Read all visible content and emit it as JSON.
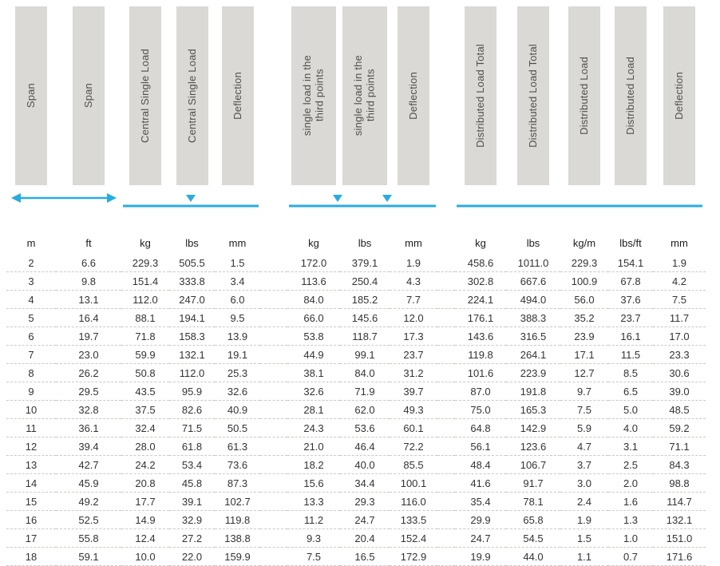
{
  "colors": {
    "accent": "#29abe2",
    "header_bg": "#dad9d5",
    "text": "#333333"
  },
  "diagram": {
    "span_arrow": "double-headed-arrow",
    "central_load": "single-down-triangle-over-beam-line",
    "third_point_loads": "two-down-triangles-over-beam-line",
    "distributed_load": "beam-line"
  },
  "table": {
    "headers": [
      "Span",
      "Span",
      "Central Single Load",
      "Central Single Load",
      "Deflection",
      "single load in the\nthird points",
      "single load in the\nthird points",
      "Deflection",
      "Distributed Load Total",
      "Distributed Load Total",
      "Distributed Load",
      "Distributed Load",
      "Deflection"
    ],
    "units": [
      "m",
      "ft",
      "kg",
      "lbs",
      "mm",
      "kg",
      "lbs",
      "mm",
      "kg",
      "lbs",
      "kg/m",
      "lbs/ft",
      "mm"
    ],
    "rows": [
      [
        "2",
        "6.6",
        "229.3",
        "505.5",
        "1.5",
        "172.0",
        "379.1",
        "1.9",
        "458.6",
        "1011.0",
        "229.3",
        "154.1",
        "1.9"
      ],
      [
        "3",
        "9.8",
        "151.4",
        "333.8",
        "3.4",
        "113.6",
        "250.4",
        "4.3",
        "302.8",
        "667.6",
        "100.9",
        "67.8",
        "4.2"
      ],
      [
        "4",
        "13.1",
        "112.0",
        "247.0",
        "6.0",
        "84.0",
        "185.2",
        "7.7",
        "224.1",
        "494.0",
        "56.0",
        "37.6",
        "7.5"
      ],
      [
        "5",
        "16.4",
        "88.1",
        "194.1",
        "9.5",
        "66.0",
        "145.6",
        "12.0",
        "176.1",
        "388.3",
        "35.2",
        "23.7",
        "11.7"
      ],
      [
        "6",
        "19.7",
        "71.8",
        "158.3",
        "13.9",
        "53.8",
        "118.7",
        "17.3",
        "143.6",
        "316.5",
        "23.9",
        "16.1",
        "17.0"
      ],
      [
        "7",
        "23.0",
        "59.9",
        "132.1",
        "19.1",
        "44.9",
        "99.1",
        "23.7",
        "119.8",
        "264.1",
        "17.1",
        "11.5",
        "23.3"
      ],
      [
        "8",
        "26.2",
        "50.8",
        "112.0",
        "25.3",
        "38.1",
        "84.0",
        "31.2",
        "101.6",
        "223.9",
        "12.7",
        "8.5",
        "30.6"
      ],
      [
        "9",
        "29.5",
        "43.5",
        "95.9",
        "32.6",
        "32.6",
        "71.9",
        "39.7",
        "87.0",
        "191.8",
        "9.7",
        "6.5",
        "39.0"
      ],
      [
        "10",
        "32.8",
        "37.5",
        "82.6",
        "40.9",
        "28.1",
        "62.0",
        "49.3",
        "75.0",
        "165.3",
        "7.5",
        "5.0",
        "48.5"
      ],
      [
        "11",
        "36.1",
        "32.4",
        "71.5",
        "50.5",
        "24.3",
        "53.6",
        "60.1",
        "64.8",
        "142.9",
        "5.9",
        "4.0",
        "59.2"
      ],
      [
        "12",
        "39.4",
        "28.0",
        "61.8",
        "61.3",
        "21.0",
        "46.4",
        "72.2",
        "56.1",
        "123.6",
        "4.7",
        "3.1",
        "71.1"
      ],
      [
        "13",
        "42.7",
        "24.2",
        "53.4",
        "73.6",
        "18.2",
        "40.0",
        "85.5",
        "48.4",
        "106.7",
        "3.7",
        "2.5",
        "84.3"
      ],
      [
        "14",
        "45.9",
        "20.8",
        "45.8",
        "87.3",
        "15.6",
        "34.4",
        "100.1",
        "41.6",
        "91.7",
        "3.0",
        "2.0",
        "98.8"
      ],
      [
        "15",
        "49.2",
        "17.7",
        "39.1",
        "102.7",
        "13.3",
        "29.3",
        "116.0",
        "35.4",
        "78.1",
        "2.4",
        "1.6",
        "114.7"
      ],
      [
        "16",
        "52.5",
        "14.9",
        "32.9",
        "119.8",
        "11.2",
        "24.7",
        "133.5",
        "29.9",
        "65.8",
        "1.9",
        "1.3",
        "132.1"
      ],
      [
        "17",
        "55.8",
        "12.4",
        "27.2",
        "138.8",
        "9.3",
        "20.4",
        "152.4",
        "24.7",
        "54.5",
        "1.5",
        "1.0",
        "151.0"
      ],
      [
        "18",
        "59.1",
        "10.0",
        "22.0",
        "159.9",
        "7.5",
        "16.5",
        "172.9",
        "19.9",
        "44.0",
        "1.1",
        "0.7",
        "171.6"
      ]
    ]
  }
}
